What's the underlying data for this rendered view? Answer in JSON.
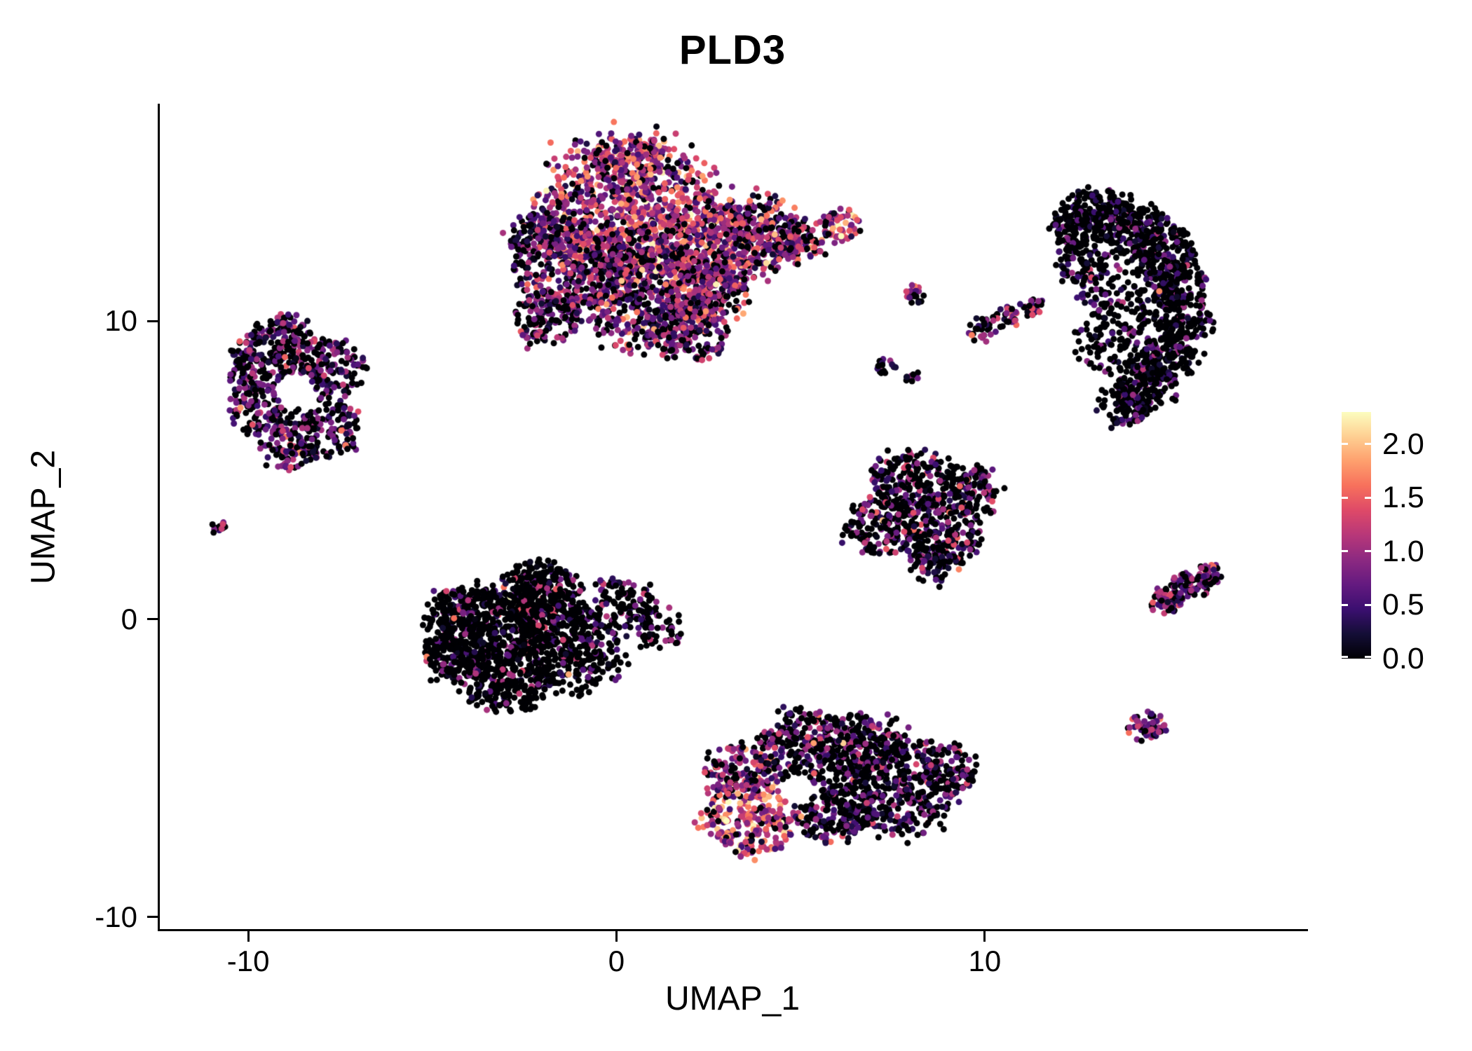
{
  "title": "PLD3",
  "axes": {
    "x": {
      "label": "UMAP_1",
      "ticks": [
        "-10",
        "0",
        "10"
      ],
      "tick_values": [
        -10,
        0,
        10
      ],
      "range": [
        -12.4,
        18.7
      ]
    },
    "y": {
      "label": "UMAP_2",
      "ticks": [
        "-10",
        "0",
        "10"
      ],
      "tick_values": [
        -10,
        0,
        10
      ],
      "range": [
        -10.4,
        17.25
      ]
    }
  },
  "legend": {
    "tick_labels": [
      "2.0",
      "1.5",
      "1.0",
      "0.5",
      "0.0"
    ],
    "tick_values": [
      2.0,
      1.5,
      1.0,
      0.5,
      0.0
    ],
    "min": 0,
    "max": 2.3
  },
  "colors": {
    "axis": "#000000",
    "text": "#000000",
    "background": "#FFFFFF"
  },
  "colormap": {
    "name": "magma",
    "stops": [
      [
        0.0,
        "#000004"
      ],
      [
        0.1,
        "#140e36"
      ],
      [
        0.2,
        "#3b0f70"
      ],
      [
        0.3,
        "#641a80"
      ],
      [
        0.4,
        "#8c2981"
      ],
      [
        0.5,
        "#b73779"
      ],
      [
        0.6,
        "#de4968"
      ],
      [
        0.7,
        "#f7705c"
      ],
      [
        0.8,
        "#fe9f6d"
      ],
      [
        0.9,
        "#fecf92"
      ],
      [
        1.0,
        "#fcfdbf"
      ]
    ]
  },
  "chart_data": {
    "type": "scatter",
    "title": "PLD3",
    "xlabel": "UMAP_1",
    "ylabel": "UMAP_2",
    "xlim": [
      -12.4,
      18.7
    ],
    "ylim": [
      -10.4,
      17.25
    ],
    "grid": false,
    "legend_position": "right",
    "color_scale": {
      "min": 0,
      "max": 2.3,
      "ticks": [
        0.0,
        0.5,
        1.0,
        1.5,
        2.0
      ],
      "palette": "magma"
    },
    "point_radius_px": 4.5,
    "seed": 42,
    "clusters": [
      {
        "name": "top-center-main",
        "expr": {
          "zero_p": 0.25,
          "mean": 0.9,
          "sd": 0.5
        },
        "blobs": [
          {
            "c": [
              0.3,
              13.7
            ],
            "r": 2.5,
            "n": 850,
            "expr": {
              "zero_p": 0.14,
              "mean": 1.1,
              "sd": 0.5
            }
          },
          {
            "c": [
              -1.0,
              11.8
            ],
            "r": 1.8,
            "n": 420,
            "expr": {
              "zero_p": 0.3,
              "mean": 0.8,
              "sd": 0.45
            }
          },
          {
            "c": [
              0.9,
              10.8
            ],
            "r": 1.8,
            "n": 430,
            "expr": {
              "zero_p": 0.28,
              "mean": 0.85,
              "sd": 0.5
            }
          },
          {
            "c": [
              2.4,
              12.5
            ],
            "r": 1.7,
            "n": 420,
            "expr": {
              "zero_p": 0.18,
              "mean": 1.05,
              "sd": 0.5
            }
          },
          {
            "c": [
              3.9,
              13.0
            ],
            "r": 1.2,
            "n": 240,
            "expr": {
              "zero_p": 0.22,
              "mean": 0.95,
              "sd": 0.5
            }
          },
          {
            "c": [
              1.9,
              9.7
            ],
            "r": 1.1,
            "n": 170,
            "expr": {
              "zero_p": 0.35,
              "mean": 0.8,
              "sd": 0.45
            }
          },
          {
            "c": [
              -1.9,
              10.0
            ],
            "r": 0.9,
            "n": 110,
            "expr": {
              "zero_p": 0.45,
              "mean": 0.6,
              "sd": 0.4
            }
          },
          {
            "c": [
              -2.2,
              12.8
            ],
            "r": 0.8,
            "n": 90,
            "expr": {
              "zero_p": 0.4,
              "mean": 0.65,
              "sd": 0.4
            }
          },
          {
            "c": [
              5.0,
              12.7
            ],
            "r": 0.7,
            "n": 90,
            "expr": {
              "zero_p": 0.3,
              "mean": 0.9,
              "sd": 0.5
            }
          },
          {
            "c": [
              6.1,
              13.2
            ],
            "r": 0.55,
            "n": 60,
            "expr": {
              "zero_p": 0.15,
              "mean": 1.2,
              "sd": 0.45
            }
          },
          {
            "c": [
              0.5,
              15.2
            ],
            "r": 1.0,
            "n": 130,
            "expr": {
              "zero_p": 0.2,
              "mean": 1.0,
              "sd": 0.5
            }
          },
          {
            "c": [
              2.6,
              10.9
            ],
            "r": 1.0,
            "n": 150,
            "expr": {
              "zero_p": 0.3,
              "mean": 0.9,
              "sd": 0.5
            }
          }
        ]
      },
      {
        "name": "left-ring",
        "expr": {
          "zero_p": 0.48,
          "mean": 0.68,
          "sd": 0.42
        },
        "holes": [
          {
            "c": [
              -8.7,
              7.6
            ],
            "r": 0.55
          }
        ],
        "blobs": [
          {
            "c": [
              -9.4,
              8.9
            ],
            "r": 1.0,
            "n": 160
          },
          {
            "c": [
              -7.9,
              8.5
            ],
            "r": 1.0,
            "n": 160
          },
          {
            "c": [
              -9.7,
              7.0
            ],
            "r": 0.8,
            "n": 105
          },
          {
            "c": [
              -8.0,
              6.4
            ],
            "r": 1.0,
            "n": 150
          },
          {
            "c": [
              -8.8,
              5.8
            ],
            "r": 0.75,
            "n": 90,
            "expr": {
              "zero_p": 0.35,
              "mean": 0.85,
              "sd": 0.45
            }
          },
          {
            "c": [
              -8.9,
              9.7
            ],
            "r": 0.6,
            "n": 55
          },
          {
            "c": [
              -10.1,
              8.0
            ],
            "r": 0.5,
            "n": 45
          }
        ]
      },
      {
        "name": "tiny-left-dot",
        "expr": {
          "zero_p": 0.3,
          "mean": 0.8,
          "sd": 0.35
        },
        "blobs": [
          {
            "c": [
              -10.8,
              3.05
            ],
            "r": 0.22,
            "n": 14
          }
        ]
      },
      {
        "name": "center-left-dark",
        "expr": {
          "zero_p": 0.8,
          "mean": 0.6,
          "sd": 0.45
        },
        "blobs": [
          {
            "c": [
              -3.6,
              -0.4
            ],
            "r": 1.5,
            "n": 400
          },
          {
            "c": [
              -2.2,
              0.3
            ],
            "r": 1.4,
            "n": 340
          },
          {
            "c": [
              -1.2,
              -1.0
            ],
            "r": 1.4,
            "n": 340
          },
          {
            "c": [
              -3.0,
              -2.0
            ],
            "r": 1.2,
            "n": 260
          },
          {
            "c": [
              -4.4,
              -1.2
            ],
            "r": 0.9,
            "n": 150
          },
          {
            "c": [
              0.1,
              0.5
            ],
            "r": 0.9,
            "n": 110,
            "expr": {
              "zero_p": 0.7,
              "mean": 0.6,
              "sd": 0.4
            }
          },
          {
            "c": [
              1.1,
              -0.3
            ],
            "r": 0.7,
            "n": 55,
            "expr": {
              "zero_p": 0.65,
              "mean": 0.6,
              "sd": 0.4
            }
          },
          {
            "c": [
              -2.1,
              1.2
            ],
            "r": 0.9,
            "n": 100
          },
          {
            "c": [
              -4.5,
              0.3
            ],
            "r": 0.7,
            "n": 80
          }
        ]
      },
      {
        "name": "mid-right-triangle",
        "expr": {
          "zero_p": 0.55,
          "mean": 0.62,
          "sd": 0.42
        },
        "blobs": [
          {
            "c": [
              8.0,
              4.6
            ],
            "r": 1.1,
            "n": 210
          },
          {
            "c": [
              7.2,
              3.2
            ],
            "r": 1.0,
            "n": 175
          },
          {
            "c": [
              8.8,
              2.9
            ],
            "r": 1.1,
            "n": 205
          },
          {
            "c": [
              9.6,
              4.3
            ],
            "r": 0.9,
            "n": 130
          },
          {
            "c": [
              8.6,
              1.9
            ],
            "r": 0.7,
            "n": 75
          }
        ]
      },
      {
        "name": "bottom-center",
        "expr": {
          "zero_p": 0.55,
          "mean": 0.62,
          "sd": 0.42
        },
        "holes": [
          {
            "c": [
              4.9,
              -5.7
            ],
            "r": 0.5
          }
        ],
        "blobs": [
          {
            "c": [
              3.6,
              -6.6
            ],
            "r": 1.3,
            "n": 280,
            "expr": {
              "zero_p": 0.1,
              "mean": 1.3,
              "sd": 0.5
            }
          },
          {
            "c": [
              3.3,
              -5.1
            ],
            "r": 0.9,
            "n": 140,
            "expr": {
              "zero_p": 0.3,
              "mean": 0.95,
              "sd": 0.5
            }
          },
          {
            "c": [
              5.2,
              -4.3
            ],
            "r": 1.3,
            "n": 270,
            "expr": {
              "zero_p": 0.5,
              "mean": 0.7,
              "sd": 0.45
            }
          },
          {
            "c": [
              6.8,
              -4.2
            ],
            "r": 1.1,
            "n": 200
          },
          {
            "c": [
              7.7,
              -5.6
            ],
            "r": 1.6,
            "n": 390
          },
          {
            "c": [
              5.9,
              -6.5
            ],
            "r": 1.0,
            "n": 170
          },
          {
            "c": [
              9.0,
              -5.0
            ],
            "r": 0.8,
            "n": 110
          }
        ]
      },
      {
        "name": "right-crescent",
        "expr": {
          "zero_p": 0.73,
          "mean": 0.5,
          "sd": 0.35
        },
        "blobs": [
          {
            "c": [
              13.0,
              13.6
            ],
            "r": 0.9,
            "n": 150
          },
          {
            "c": [
              14.1,
              13.2
            ],
            "r": 0.9,
            "n": 150
          },
          {
            "c": [
              14.9,
              12.3
            ],
            "r": 0.85,
            "n": 140
          },
          {
            "c": [
              15.3,
              11.2
            ],
            "r": 0.8,
            "n": 130
          },
          {
            "c": [
              15.4,
              10.0
            ],
            "r": 0.8,
            "n": 130
          },
          {
            "c": [
              15.0,
              8.8
            ],
            "r": 0.8,
            "n": 130
          },
          {
            "c": [
              14.4,
              7.8
            ],
            "r": 0.8,
            "n": 130
          },
          {
            "c": [
              13.8,
              7.2
            ],
            "r": 0.7,
            "n": 95
          },
          {
            "c": [
              12.4,
              13.1
            ],
            "r": 0.7,
            "n": 90
          },
          {
            "c": [
              13.9,
              11.2
            ],
            "r": 1.3,
            "n": 150
          },
          {
            "c": [
              13.6,
              9.3
            ],
            "r": 1.1,
            "n": 120
          },
          {
            "c": [
              12.6,
              11.9
            ],
            "r": 0.7,
            "n": 80
          }
        ]
      },
      {
        "name": "small-mid-islands",
        "expr": {
          "zero_p": 0.4,
          "mean": 0.7,
          "sd": 0.4
        },
        "blobs": [
          {
            "c": [
              8.1,
              10.9
            ],
            "r": 0.3,
            "n": 22,
            "expr": {
              "zero_p": 0.25,
              "mean": 1.0,
              "sd": 0.5
            }
          },
          {
            "c": [
              9.9,
              9.7
            ],
            "r": 0.4,
            "n": 30,
            "expr": {
              "zero_p": 0.35,
              "mean": 0.8,
              "sd": 0.4
            }
          },
          {
            "c": [
              10.6,
              10.1
            ],
            "r": 0.4,
            "n": 30,
            "expr": {
              "zero_p": 0.35,
              "mean": 0.8,
              "sd": 0.4
            }
          },
          {
            "c": [
              11.3,
              10.5
            ],
            "r": 0.35,
            "n": 25,
            "expr": {
              "zero_p": 0.35,
              "mean": 0.8,
              "sd": 0.4
            }
          },
          {
            "c": [
              7.3,
              8.5
            ],
            "r": 0.3,
            "n": 16,
            "expr": {
              "zero_p": 0.6,
              "mean": 0.5,
              "sd": 0.35
            }
          },
          {
            "c": [
              8.0,
              8.2
            ],
            "r": 0.25,
            "n": 10,
            "expr": {
              "zero_p": 0.7,
              "mean": 0.4,
              "sd": 0.3
            }
          }
        ]
      },
      {
        "name": "right-small-elongated",
        "expr": {
          "zero_p": 0.35,
          "mean": 0.78,
          "sd": 0.4
        },
        "blobs": [
          {
            "c": [
              14.9,
              0.6
            ],
            "r": 0.45,
            "n": 60
          },
          {
            "c": [
              15.6,
              1.1
            ],
            "r": 0.5,
            "n": 70
          },
          {
            "c": [
              16.1,
              1.5
            ],
            "r": 0.35,
            "n": 35
          }
        ]
      },
      {
        "name": "bottom-right-dot",
        "expr": {
          "zero_p": 0.2,
          "mean": 1.0,
          "sd": 0.4
        },
        "blobs": [
          {
            "c": [
              14.4,
              -3.6
            ],
            "r": 0.5,
            "n": 55
          }
        ]
      }
    ]
  }
}
